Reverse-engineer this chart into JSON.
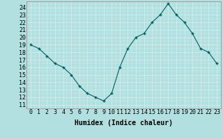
{
  "x": [
    0,
    1,
    2,
    3,
    4,
    5,
    6,
    7,
    8,
    9,
    10,
    11,
    12,
    13,
    14,
    15,
    16,
    17,
    18,
    19,
    20,
    21,
    22,
    23
  ],
  "y": [
    19,
    18.5,
    17.5,
    16.5,
    16,
    15,
    13.5,
    12.5,
    12,
    11.5,
    12.5,
    16,
    18.5,
    20,
    20.5,
    22,
    23,
    24.5,
    23,
    22,
    20.5,
    18.5,
    18,
    16.5
  ],
  "line_color": "#006060",
  "marker_color": "#006060",
  "bg_color": "#b2e0e0",
  "grid_color": "#d8f0f0",
  "xlabel": "Humidex (Indice chaleur)",
  "xlabel_fontsize": 7,
  "ylabel_ticks": [
    11,
    12,
    13,
    14,
    15,
    16,
    17,
    18,
    19,
    20,
    21,
    22,
    23,
    24
  ],
  "ylim": [
    10.5,
    24.8
  ],
  "xlim": [
    -0.5,
    23.5
  ],
  "xtick_labels": [
    "0",
    "1",
    "2",
    "3",
    "4",
    "5",
    "6",
    "7",
    "8",
    "9",
    "10",
    "11",
    "12",
    "13",
    "14",
    "15",
    "16",
    "17",
    "18",
    "19",
    "20",
    "21",
    "22",
    "23"
  ],
  "tick_fontsize": 6
}
